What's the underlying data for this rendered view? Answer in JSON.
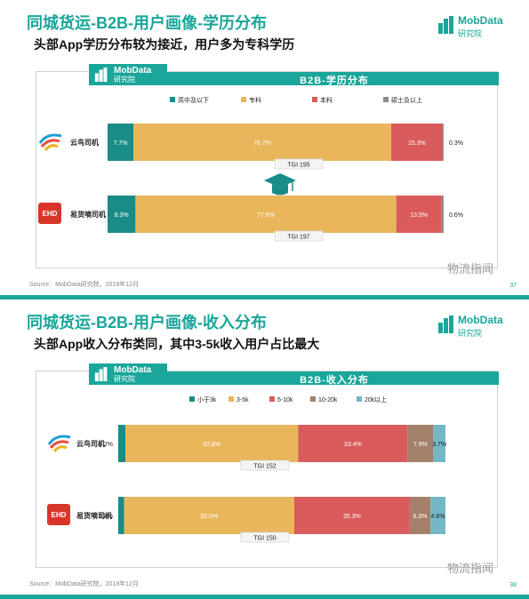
{
  "colors": {
    "teal": "#1aa69a",
    "bar_teal": "#1a8c88",
    "gold": "#e9b65c",
    "red": "#d95b5b",
    "gray": "#8c8c8c",
    "brown": "#a3806a",
    "lightblue": "#74b7c6"
  },
  "slides": [
    {
      "title": "同城货运-B2B-用户画像-学历分布",
      "subtitle": "头部App学历分布较为接近，用户多为专科学历",
      "logo": {
        "name": "MobData",
        "sub": "研究院",
        "icon": "mobdata-logo-icon"
      },
      "badge": {
        "name": "MobData",
        "sub": "研究院"
      },
      "banner": "B2B-学历分布",
      "footer": "Source：MobData研究院，2018年12月",
      "page": "37",
      "watermark": "物流指闻",
      "chart_data": {
        "type": "bar",
        "stacked": true,
        "orientation": "horizontal",
        "unit": "%",
        "categories": [
          "云鸟司机",
          "易货嘀司机"
        ],
        "series": [
          {
            "name": "高中及以下",
            "values": [
              7.7,
              8.3
            ]
          },
          {
            "name": "专科",
            "values": [
              76.7,
              77.6
            ]
          },
          {
            "name": "本科",
            "values": [
              15.3,
              13.5
            ]
          },
          {
            "name": "硕士及以上",
            "values": [
              0.3,
              0.6
            ]
          }
        ],
        "labels": [
          [
            "7.7%",
            "76.7%",
            "15.3%",
            "0.3%"
          ],
          [
            "8.3%",
            "77.6%",
            "13.5%",
            "0.6%"
          ]
        ],
        "tgi": [
          "TGI 195",
          "TGI 197"
        ],
        "legend": "top",
        "decoration": "graduation-cap-icon"
      }
    },
    {
      "title": "同城货运-B2B-用户画像-收入分布",
      "subtitle": "头部App收入分布类同，其中3-5k收入用户占比最大",
      "logo": {
        "name": "MobData",
        "sub": "研究院",
        "icon": "mobdata-logo-icon"
      },
      "badge": {
        "name": "MobData",
        "sub": "研究院"
      },
      "banner": "B2B-收入分布",
      "footer": "Source：MobData研究院，2018年12月",
      "page": "38",
      "watermark": "物流指闻",
      "chart_data": {
        "type": "bar",
        "stacked": true,
        "orientation": "horizontal",
        "unit": "%",
        "categories": [
          "云鸟司机",
          "易货嘀司机"
        ],
        "series": [
          {
            "name": "小于3k",
            "values": [
              2.2,
              1.8
            ]
          },
          {
            "name": "3-5k",
            "values": [
              52.8,
              52.0
            ]
          },
          {
            "name": "5-10k",
            "values": [
              33.4,
              35.3
            ]
          },
          {
            "name": "10-20k",
            "values": [
              7.9,
              6.3
            ]
          },
          {
            "name": "20k以上",
            "values": [
              3.7,
              4.6
            ]
          }
        ],
        "labels": [
          [
            "2.2%",
            "52.8%",
            "33.4%",
            "7.9%",
            "3.7%"
          ],
          [
            "1.8%",
            "52.0%",
            "35.3%",
            "6.3%",
            "4.6%"
          ]
        ],
        "tgi": [
          "TGI 152",
          "TGI 150"
        ],
        "legend": "top"
      }
    }
  ]
}
